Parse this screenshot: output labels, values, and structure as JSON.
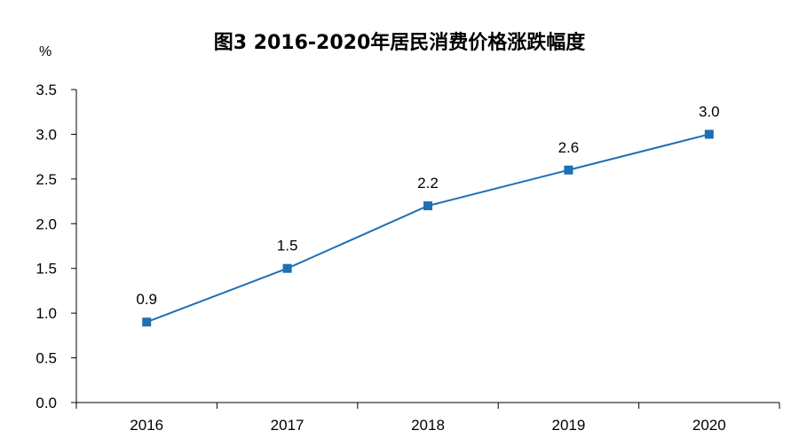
{
  "chart_data": {
    "type": "line",
    "title": "图3 2016-2020年居民消费价格涨跌幅度",
    "unit": "%",
    "xlabel": "",
    "ylabel": "",
    "categories": [
      "2016",
      "2017",
      "2018",
      "2019",
      "2020"
    ],
    "series": [
      {
        "values": [
          0.9,
          1.5,
          2.2,
          2.6,
          3.0
        ],
        "color": "#1f6fb3",
        "marker": "square"
      }
    ],
    "data_labels": [
      "0.9",
      "1.5",
      "2.2",
      "2.6",
      "3.0"
    ],
    "ylim": [
      0,
      3.5
    ],
    "yticks": [
      0.0,
      0.5,
      1.0,
      1.5,
      2.0,
      2.5,
      3.0,
      3.5
    ],
    "ytick_labels": [
      "0.0",
      "0.5",
      "1.0",
      "1.5",
      "2.0",
      "2.5",
      "3.0",
      "3.5"
    ],
    "grid": false,
    "legend": "none",
    "axis_color": "#000000",
    "background": "#ffffff"
  }
}
